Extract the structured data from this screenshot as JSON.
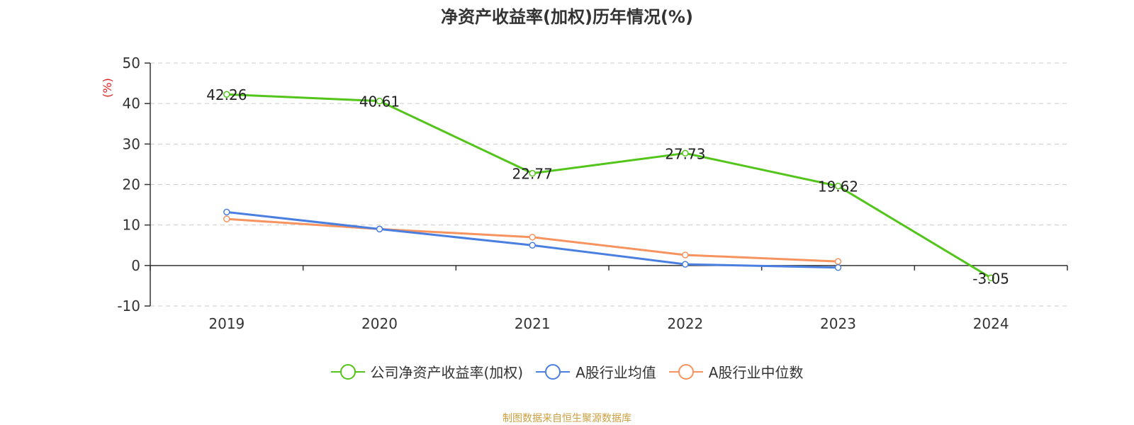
{
  "chart_data": {
    "type": "line",
    "title": "净资产收益率(加权)历年情况(%)",
    "ylabel": "(%)",
    "xlabel": "",
    "categories": [
      "2019",
      "2020",
      "2021",
      "2022",
      "2023",
      "2024"
    ],
    "ylim": [
      -10,
      50
    ],
    "yticks": [
      -10,
      0,
      10,
      20,
      30,
      40,
      50
    ],
    "grid": true,
    "legend_position": "bottom",
    "series": [
      {
        "name": "公司净资产收益率(加权)",
        "color": "#52c41a",
        "values": [
          42.26,
          40.61,
          22.77,
          27.73,
          19.62,
          -3.05
        ],
        "labels": [
          "42.26",
          "40.61",
          "22.77",
          "27.73",
          "19.62",
          "-3.05"
        ]
      },
      {
        "name": "A股行业均值",
        "color": "#4a7fe0",
        "values": [
          13.2,
          9.0,
          5.0,
          0.3,
          -0.5,
          null
        ]
      },
      {
        "name": "A股行业中位数",
        "color": "#f7935e",
        "values": [
          11.5,
          9.0,
          7.0,
          2.6,
          1.0,
          null
        ]
      }
    ],
    "source": "制图数据来自恒生聚源数据库"
  }
}
